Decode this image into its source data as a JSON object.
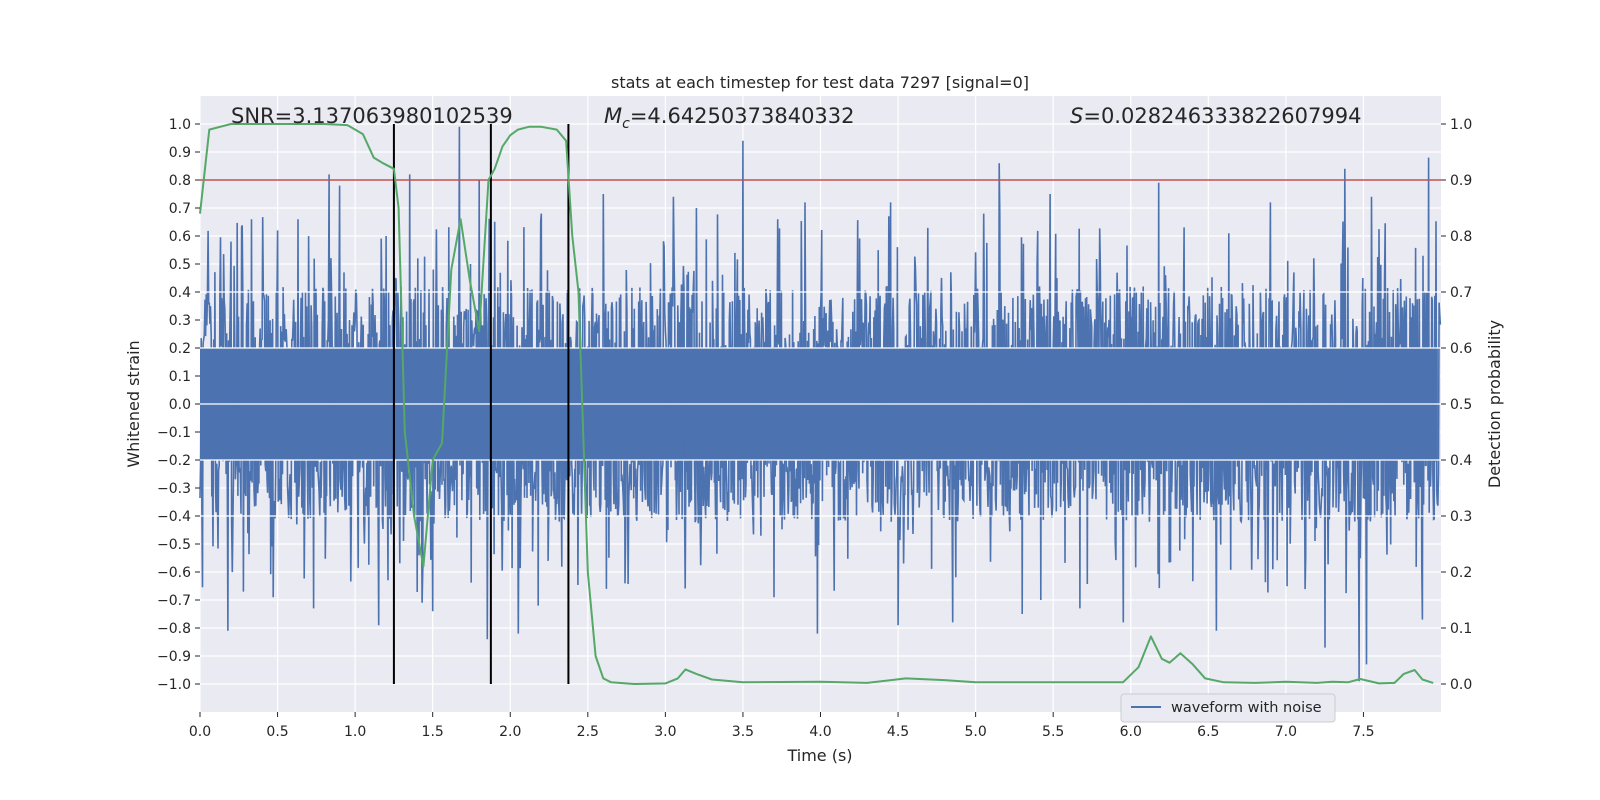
{
  "chart_data": {
    "type": "line",
    "title": "stats at each timestep for test data 7297 [signal=0]",
    "xlabel": "Time (s)",
    "ylabel": "Whitened strain",
    "y2label": "Detection probability",
    "xlim": [
      0.0,
      8.0
    ],
    "ylim": [
      -1.1,
      1.1
    ],
    "y2lim": [
      -0.05,
      1.05
    ],
    "x_ticks": [
      "0.0",
      "0.5",
      "1.0",
      "1.5",
      "2.0",
      "2.5",
      "3.0",
      "3.5",
      "4.0",
      "4.5",
      "5.0",
      "5.5",
      "6.0",
      "6.5",
      "7.0",
      "7.5"
    ],
    "y_ticks": [
      "1.0",
      "0.9",
      "0.8",
      "0.7",
      "0.6",
      "0.5",
      "0.4",
      "0.3",
      "0.2",
      "0.1",
      "0.0",
      "−0.1",
      "−0.2",
      "−0.3",
      "−0.4",
      "−0.5",
      "−0.6",
      "−0.7",
      "−0.8",
      "−0.9",
      "−1.0"
    ],
    "y2_ticks": [
      "1.0",
      "0.9",
      "0.8",
      "0.7",
      "0.6",
      "0.5",
      "0.4",
      "0.3",
      "0.2",
      "0.1",
      "0.0"
    ],
    "grid": true,
    "annotations": {
      "snr": "SNR=3.137063980102539",
      "mc_symbol": "M",
      "mc_sub": "c",
      "mc_value": "=4.64250373840332",
      "s_symbol": "S",
      "s_value": "=0.028246333822607994"
    },
    "threshold": {
      "value": 0.9,
      "axis": "right",
      "color": "#c44e52"
    },
    "vertical_markers": [
      1.25,
      1.875,
      2.375
    ],
    "waveform": {
      "name": "waveform with noise",
      "color": "#4c72b0",
      "samples": 2000,
      "core_amplitude": 0.4,
      "spike_positive": [
        [
          0.2,
          0.58
        ],
        [
          0.33,
          0.66
        ],
        [
          0.5,
          0.62
        ],
        [
          0.63,
          0.66
        ],
        [
          0.83,
          0.82
        ],
        [
          0.9,
          0.78
        ],
        [
          1.2,
          0.6
        ],
        [
          1.35,
          0.82
        ],
        [
          1.67,
          0.99
        ],
        [
          1.8,
          0.8
        ],
        [
          2.2,
          0.68
        ],
        [
          2.6,
          0.75
        ],
        [
          3.05,
          0.74
        ],
        [
          3.2,
          0.7
        ],
        [
          3.5,
          0.94
        ],
        [
          3.9,
          0.72
        ],
        [
          4.45,
          0.72
        ],
        [
          4.85,
          0.78
        ],
        [
          5.05,
          0.68
        ],
        [
          5.15,
          0.86
        ],
        [
          5.48,
          0.75
        ],
        [
          6.18,
          0.79
        ],
        [
          6.55,
          0.78
        ],
        [
          6.9,
          0.72
        ],
        [
          7.38,
          0.84
        ],
        [
          7.55,
          0.74
        ],
        [
          7.92,
          0.88
        ]
      ],
      "spike_negative": [
        [
          0.18,
          -0.81
        ],
        [
          0.28,
          -0.67
        ],
        [
          0.47,
          -0.69
        ],
        [
          0.73,
          -0.73
        ],
        [
          1.15,
          -0.79
        ],
        [
          1.43,
          -0.71
        ],
        [
          1.5,
          -0.74
        ],
        [
          1.85,
          -0.84
        ],
        [
          2.05,
          -0.82
        ],
        [
          2.18,
          -0.72
        ],
        [
          3.7,
          -0.69
        ],
        [
          3.98,
          -0.82
        ],
        [
          4.5,
          -0.79
        ],
        [
          4.85,
          -0.78
        ],
        [
          5.3,
          -0.75
        ],
        [
          5.42,
          -0.7
        ],
        [
          5.67,
          -0.73
        ],
        [
          5.95,
          -0.78
        ],
        [
          6.55,
          -0.81
        ],
        [
          7.25,
          -0.87
        ],
        [
          7.47,
          -0.99
        ],
        [
          7.52,
          -0.93
        ],
        [
          7.88,
          -0.77
        ]
      ]
    },
    "detection_probability": {
      "name": "detection probability",
      "color": "#55a868",
      "x": [
        0.0,
        0.06,
        0.2,
        0.4,
        0.6,
        0.8,
        0.95,
        1.05,
        1.12,
        1.18,
        1.25,
        1.28,
        1.32,
        1.38,
        1.44,
        1.5,
        1.56,
        1.62,
        1.68,
        1.74,
        1.8,
        1.86,
        1.9,
        1.95,
        2.0,
        2.05,
        2.12,
        2.2,
        2.3,
        2.36,
        2.4,
        2.44,
        2.5,
        2.55,
        2.6,
        2.65,
        2.8,
        3.0,
        3.08,
        3.13,
        3.2,
        3.3,
        3.5,
        4.0,
        4.3,
        4.55,
        4.8,
        5.0,
        5.5,
        5.95,
        6.05,
        6.13,
        6.2,
        6.25,
        6.32,
        6.4,
        6.48,
        6.6,
        6.8,
        7.0,
        7.2,
        7.3,
        7.4,
        7.48,
        7.6,
        7.7,
        7.76,
        7.83,
        7.88,
        7.95
      ],
      "values": [
        0.84,
        0.99,
        1.0,
        1.0,
        1.0,
        1.0,
        0.998,
        0.982,
        0.94,
        0.93,
        0.92,
        0.85,
        0.45,
        0.3,
        0.21,
        0.4,
        0.43,
        0.74,
        0.83,
        0.72,
        0.63,
        0.9,
        0.92,
        0.96,
        0.98,
        0.99,
        0.995,
        0.995,
        0.99,
        0.97,
        0.8,
        0.7,
        0.2,
        0.05,
        0.01,
        0.003,
        0.0,
        0.001,
        0.01,
        0.026,
        0.018,
        0.008,
        0.003,
        0.004,
        0.002,
        0.01,
        0.007,
        0.003,
        0.003,
        0.003,
        0.03,
        0.085,
        0.045,
        0.038,
        0.055,
        0.035,
        0.01,
        0.003,
        0.002,
        0.004,
        0.002,
        0.004,
        0.003,
        0.009,
        0.001,
        0.002,
        0.018,
        0.025,
        0.008,
        0.002
      ]
    },
    "legend": {
      "location": "lower-center-right",
      "entries": [
        "waveform with noise"
      ]
    }
  },
  "colors": {
    "plot_background": "#eaeaf2",
    "grid": "#ffffff",
    "text": "#262626",
    "marker_line": "#000000"
  }
}
